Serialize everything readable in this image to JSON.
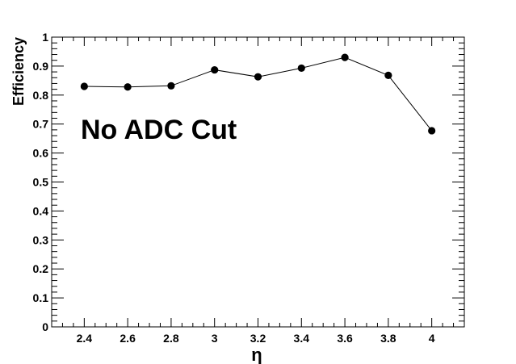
{
  "chart_data": {
    "type": "scatter",
    "title": "",
    "annotation": "No ADC Cut",
    "xlabel": "η",
    "ylabel": "Efficiency",
    "xlim": [
      2.25,
      4.15
    ],
    "ylim": [
      0,
      1
    ],
    "x_ticks": [
      "2.4",
      "2.6",
      "2.8",
      "3",
      "3.2",
      "3.4",
      "3.6",
      "3.8",
      "4"
    ],
    "y_ticks": [
      "0",
      "0.1",
      "0.2",
      "0.3",
      "0.4",
      "0.5",
      "0.6",
      "0.7",
      "0.8",
      "0.9",
      "1"
    ],
    "grid": false,
    "legend": "none",
    "marker_color": "#000000",
    "line_color": "#000000",
    "series": [
      {
        "x": [
          2.4,
          2.6,
          2.8,
          3.0,
          3.2,
          3.4,
          3.6,
          3.8,
          4.0
        ],
        "y": [
          0.83,
          0.828,
          0.832,
          0.887,
          0.863,
          0.893,
          0.93,
          0.868,
          0.677
        ]
      }
    ]
  }
}
